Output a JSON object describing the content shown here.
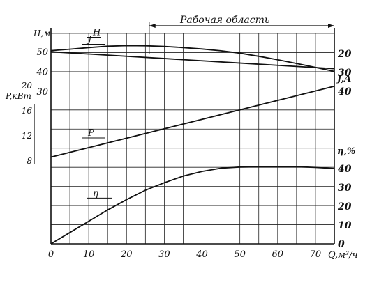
{
  "chart_data": {
    "type": "line",
    "x_axis": {
      "label": "Q,м³/ч",
      "range": [
        0,
        75
      ],
      "ticks": [
        0,
        10,
        20,
        30,
        40,
        50,
        60,
        70
      ]
    },
    "region_label": "Рабочая   область",
    "working_region": [
      26,
      75
    ],
    "axes": {
      "H": {
        "label": "H,м",
        "ticks": [
          30,
          40,
          50
        ]
      },
      "P": {
        "label": "P,кВт",
        "ticks": [
          8,
          12,
          16,
          20
        ]
      },
      "I": {
        "label": "J,A",
        "ticks": [
          20,
          30,
          40
        ]
      },
      "eta": {
        "label": "η,%",
        "ticks": [
          0,
          10,
          20,
          30,
          40
        ]
      }
    },
    "series": [
      {
        "name": "H",
        "axis": "H",
        "x": [
          0,
          5,
          10,
          15,
          20,
          25,
          30,
          35,
          40,
          45,
          50,
          55,
          60,
          65,
          70,
          75
        ],
        "y": [
          50.5,
          51.2,
          52,
          52.7,
          53,
          52.9,
          52.6,
          52,
          51.3,
          50.4,
          49.2,
          47.6,
          45.9,
          44,
          42,
          40
        ]
      },
      {
        "name": "J",
        "axis": "I",
        "x": [
          0,
          75
        ],
        "y": [
          19,
          28
        ]
      },
      {
        "name": "P",
        "axis": "P",
        "x": [
          0,
          75
        ],
        "y": [
          8.5,
          19.8
        ]
      },
      {
        "name": "η",
        "axis": "eta",
        "x": [
          0,
          5,
          10,
          15,
          20,
          25,
          30,
          35,
          40,
          45,
          50,
          55,
          60,
          65,
          70,
          75
        ],
        "y": [
          0,
          6,
          12,
          18,
          23.5,
          28.5,
          32.5,
          36,
          38.5,
          40.2,
          40.8,
          41,
          41,
          41,
          40.6,
          40
        ]
      }
    ]
  }
}
